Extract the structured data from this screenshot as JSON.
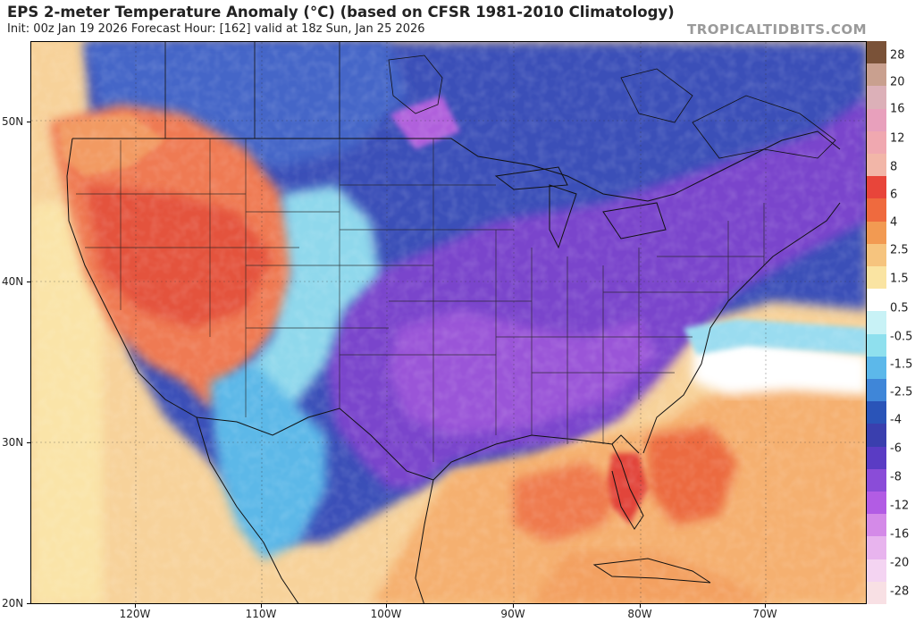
{
  "header": {
    "title": "EPS 2-meter Temperature Anomaly (°C) (based on CFSR 1981-2010 Climatology)",
    "subtitle": "Init: 00z Jan 19 2026   Forecast Hour: [162]   valid at 18z Sun, Jan 25 2026",
    "brand": "TROPICALTIDBITS.COM"
  },
  "map": {
    "lat_labels": [
      "50N",
      "40N",
      "30N",
      "20N"
    ],
    "lon_labels": [
      "120W",
      "110W",
      "100W",
      "90W",
      "80W",
      "70W"
    ]
  },
  "colorbar": {
    "labels": [
      "28",
      "20",
      "16",
      "12",
      "8",
      "6",
      "4",
      "2.5",
      "1.5",
      "0.5",
      "-0.5",
      "-1.5",
      "-2.5",
      "-4",
      "-6",
      "-8",
      "-12",
      "-16",
      "-20",
      "-28"
    ],
    "colors": {
      "top_brown": "#7a5238",
      "warm_1": "#c9a08f",
      "warm_2": "#dcb0b8",
      "warm_3": "#e8a0bc",
      "warm_4": "#f0a8b0",
      "warm_5": "#f2b6a8",
      "warm_6": "#e8453a",
      "warm_7": "#ef6a3e",
      "warm_8": "#f29a52",
      "warm_9": "#f6c47e",
      "warm_10": "#fae4a2",
      "neutral": "#ffffff",
      "cool_1": "#c8f2f6",
      "cool_2": "#8fe0ee",
      "cool_3": "#5cb8ea",
      "cool_4": "#3f86d8",
      "cool_5": "#2a54b8",
      "cool_6": "#3a3fae",
      "cool_7": "#5a3cc4",
      "cool_8": "#8a4cd8",
      "cool_9": "#b25ce4",
      "cool_10": "#d48ae8",
      "cool_11": "#e8b4ee",
      "cool_12": "#f4d4f2",
      "bottom": "#f8e0e4"
    }
  }
}
